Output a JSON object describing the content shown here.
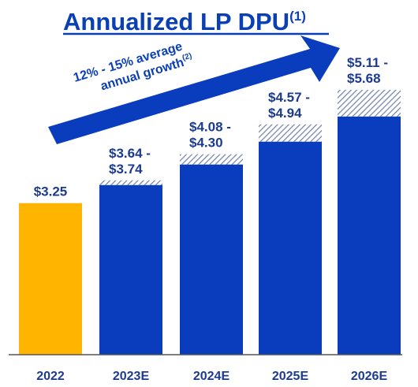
{
  "chart_data": {
    "type": "bar",
    "title": "Annualized LP DPU",
    "title_footnote": "(1)",
    "annotation": {
      "line1": "12% - 15% average",
      "line2": "annual growth",
      "footnote": "(2)"
    },
    "categories": [
      "2022",
      "2023E",
      "2024E",
      "2025E",
      "2026E"
    ],
    "low": [
      3.25,
      3.64,
      4.08,
      4.57,
      5.11
    ],
    "high": [
      3.25,
      3.74,
      4.3,
      4.94,
      5.68
    ],
    "labels": [
      [
        "$3.25"
      ],
      [
        "$3.64 -",
        "$3.74"
      ],
      [
        "$4.08 -",
        "$4.30"
      ],
      [
        "$4.57 -",
        "$4.94"
      ],
      [
        "$5.11 -",
        "$5.68"
      ]
    ],
    "ylim": [
      0,
      5.68
    ],
    "colors": {
      "actual": "#ffb400",
      "estimate": "#0a3dbd",
      "range_hatch": "#6f7fa6",
      "title": "#0b3fb4",
      "arrow": "#0a3dbd",
      "axis": "#555555",
      "labels": "#1c3b8f"
    },
    "grid": false,
    "legend": "none"
  }
}
